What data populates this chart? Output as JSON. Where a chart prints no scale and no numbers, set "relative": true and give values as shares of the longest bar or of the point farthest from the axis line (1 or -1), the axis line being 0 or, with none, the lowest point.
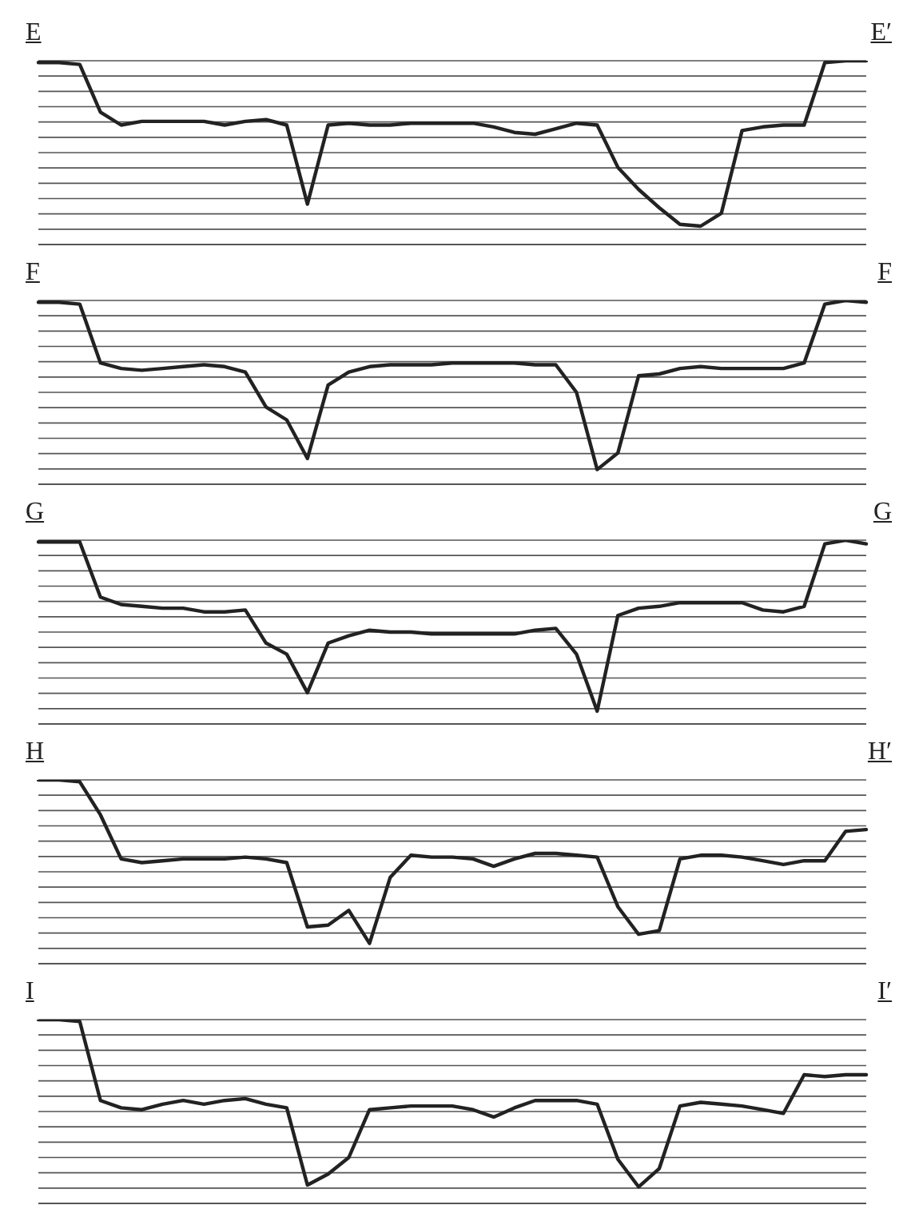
{
  "chart_data": [
    {
      "type": "line",
      "relative": true,
      "grid": "y",
      "marker": "none",
      "annotations": [
        "E",
        "E′"
      ],
      "categories": [
        null,
        null,
        null,
        null,
        null,
        null,
        null,
        null,
        null,
        null,
        null,
        null,
        null,
        null,
        null,
        null,
        null,
        null,
        null,
        null,
        null,
        null,
        null,
        null,
        null,
        null,
        null,
        null,
        null,
        null,
        null,
        null,
        null,
        null,
        null,
        null,
        null,
        null,
        null,
        null,
        null
      ],
      "series": [
        {
          "color": "#222222",
          "values": [
            0.99,
            0.99,
            0.98,
            0.72,
            0.65,
            0.67,
            0.67,
            0.67,
            0.67,
            0.65,
            0.67,
            0.68,
            0.65,
            0.22,
            0.65,
            0.66,
            0.65,
            0.65,
            0.66,
            0.66,
            0.66,
            0.66,
            0.64,
            0.61,
            0.6,
            0.63,
            0.66,
            0.65,
            0.42,
            0.3,
            0.2,
            0.11,
            0.1,
            0.17,
            0.62,
            0.64,
            0.65,
            0.65,
            0.99,
            1,
            1
          ]
        }
      ]
    },
    {
      "type": "line",
      "relative": true,
      "grid": "y",
      "marker": "none",
      "annotations": [
        "F",
        "F"
      ],
      "categories": [
        null,
        null,
        null,
        null,
        null,
        null,
        null,
        null,
        null,
        null,
        null,
        null,
        null,
        null,
        null,
        null,
        null,
        null,
        null,
        null,
        null,
        null,
        null,
        null,
        null,
        null,
        null,
        null,
        null,
        null,
        null,
        null,
        null,
        null,
        null,
        null,
        null,
        null,
        null,
        null,
        null
      ],
      "series": [
        {
          "color": "#222222",
          "values": [
            0.99,
            0.99,
            0.98,
            0.66,
            0.63,
            0.62,
            0.63,
            0.64,
            0.65,
            0.64,
            0.61,
            0.42,
            0.35,
            0.14,
            0.54,
            0.61,
            0.64,
            0.65,
            0.65,
            0.65,
            0.66,
            0.66,
            0.66,
            0.66,
            0.65,
            0.65,
            0.5,
            0.08,
            0.17,
            0.59,
            0.6,
            0.63,
            0.64,
            0.63,
            0.63,
            0.63,
            0.63,
            0.66,
            0.98,
            1,
            0.99
          ]
        }
      ]
    },
    {
      "type": "line",
      "relative": true,
      "grid": "y",
      "marker": "none",
      "annotations": [
        "G",
        "G"
      ],
      "categories": [
        null,
        null,
        null,
        null,
        null,
        null,
        null,
        null,
        null,
        null,
        null,
        null,
        null,
        null,
        null,
        null,
        null,
        null,
        null,
        null,
        null,
        null,
        null,
        null,
        null,
        null,
        null,
        null,
        null,
        null,
        null,
        null,
        null,
        null,
        null,
        null,
        null,
        null,
        null,
        null,
        null
      ],
      "series": [
        {
          "color": "#222222",
          "values": [
            0.99,
            0.99,
            0.99,
            0.69,
            0.65,
            0.64,
            0.63,
            0.63,
            0.61,
            0.61,
            0.62,
            0.44,
            0.38,
            0.17,
            0.44,
            0.48,
            0.51,
            0.5,
            0.5,
            0.49,
            0.49,
            0.49,
            0.49,
            0.49,
            0.51,
            0.52,
            0.38,
            0.07,
            0.59,
            0.63,
            0.64,
            0.66,
            0.66,
            0.66,
            0.66,
            0.62,
            0.61,
            0.64,
            0.98,
            1,
            0.98
          ]
        }
      ]
    },
    {
      "type": "line",
      "relative": true,
      "grid": "y",
      "marker": "none",
      "annotations": [
        "H",
        "H′"
      ],
      "categories": [
        null,
        null,
        null,
        null,
        null,
        null,
        null,
        null,
        null,
        null,
        null,
        null,
        null,
        null,
        null,
        null,
        null,
        null,
        null,
        null,
        null,
        null,
        null,
        null,
        null,
        null,
        null,
        null,
        null,
        null,
        null,
        null,
        null,
        null,
        null,
        null,
        null,
        null,
        null,
        null,
        null
      ],
      "series": [
        {
          "color": "#222222",
          "values": [
            1,
            1,
            0.99,
            0.81,
            0.57,
            0.55,
            0.56,
            0.57,
            0.57,
            0.57,
            0.58,
            0.57,
            0.55,
            0.2,
            0.21,
            0.29,
            0.11,
            0.47,
            0.59,
            0.58,
            0.58,
            0.57,
            0.53,
            0.57,
            0.6,
            0.6,
            0.59,
            0.58,
            0.31,
            0.16,
            0.18,
            0.57,
            0.59,
            0.59,
            0.58,
            0.56,
            0.54,
            0.56,
            0.56,
            0.72,
            0.73
          ]
        }
      ]
    },
    {
      "type": "line",
      "relative": true,
      "grid": "y",
      "marker": "none",
      "annotations": [
        "I",
        "I′"
      ],
      "categories": [
        null,
        null,
        null,
        null,
        null,
        null,
        null,
        null,
        null,
        null,
        null,
        null,
        null,
        null,
        null,
        null,
        null,
        null,
        null,
        null,
        null,
        null,
        null,
        null,
        null,
        null,
        null,
        null,
        null,
        null,
        null,
        null,
        null,
        null,
        null,
        null,
        null,
        null,
        null,
        null,
        null
      ],
      "series": [
        {
          "color": "#222222",
          "values": [
            1,
            1,
            0.99,
            0.56,
            0.52,
            0.51,
            0.54,
            0.56,
            0.54,
            0.56,
            0.57,
            0.54,
            0.52,
            0.1,
            0.16,
            0.25,
            0.51,
            0.52,
            0.53,
            0.53,
            0.53,
            0.51,
            0.47,
            0.52,
            0.56,
            0.56,
            0.56,
            0.54,
            0.24,
            0.09,
            0.19,
            0.53,
            0.55,
            0.54,
            0.53,
            0.51,
            0.49,
            0.7,
            0.69,
            0.7,
            0.7
          ]
        }
      ]
    }
  ]
}
